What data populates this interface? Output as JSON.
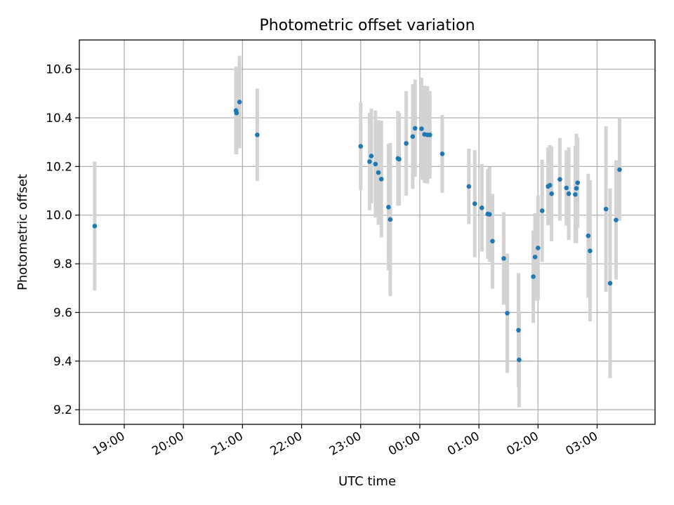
{
  "chart_data": {
    "type": "scatter",
    "title": "Photometric offset variation",
    "xlabel": "UTC time",
    "ylabel": "Photometric offset",
    "x_tick_labels": [
      "19:00",
      "20:00",
      "21:00",
      "22:00",
      "23:00",
      "00:00",
      "01:00",
      "02:00",
      "03:00"
    ],
    "y_ticks": [
      9.2,
      9.4,
      9.6,
      9.8,
      10.0,
      10.2,
      10.4,
      10.6
    ],
    "y_tick_labels": [
      "9.2",
      "9.4",
      "9.6",
      "9.8",
      "10.0",
      "10.2",
      "10.4",
      "10.6"
    ],
    "ylim": [
      9.14,
      10.72
    ],
    "x_unit": "hours after 18:00 UTC",
    "xlim": [
      18.24,
      27.98
    ],
    "grid": true,
    "marker_color": "#1f77b4",
    "errorbar_color": "#d3d3d3",
    "series": [
      {
        "points": [
          {
            "x": 18.5,
            "y": 9.955,
            "err": 0.265
          },
          {
            "x": 20.89,
            "y": 10.43,
            "err": 0.18
          },
          {
            "x": 20.9,
            "y": 10.42,
            "err": 0.17
          },
          {
            "x": 20.95,
            "y": 10.465,
            "err": 0.19
          },
          {
            "x": 21.25,
            "y": 10.33,
            "err": 0.19
          },
          {
            "x": 23.0,
            "y": 10.283,
            "err": 0.18
          },
          {
            "x": 23.15,
            "y": 10.22,
            "err": 0.2
          },
          {
            "x": 23.18,
            "y": 10.243,
            "err": 0.195
          },
          {
            "x": 23.25,
            "y": 10.21,
            "err": 0.22
          },
          {
            "x": 23.3,
            "y": 10.175,
            "err": 0.215
          },
          {
            "x": 23.35,
            "y": 10.148,
            "err": 0.24
          },
          {
            "x": 23.47,
            "y": 10.033,
            "err": 0.26
          },
          {
            "x": 23.5,
            "y": 9.982,
            "err": 0.315
          },
          {
            "x": 23.63,
            "y": 10.233,
            "err": 0.195
          },
          {
            "x": 23.65,
            "y": 10.23,
            "err": 0.19
          },
          {
            "x": 23.77,
            "y": 10.295,
            "err": 0.215
          },
          {
            "x": 23.88,
            "y": 10.323,
            "err": 0.215
          },
          {
            "x": 23.92,
            "y": 10.357,
            "err": 0.2
          },
          {
            "x": 24.03,
            "y": 10.355,
            "err": 0.21
          },
          {
            "x": 24.08,
            "y": 10.332,
            "err": 0.2
          },
          {
            "x": 24.13,
            "y": 10.33,
            "err": 0.2
          },
          {
            "x": 24.17,
            "y": 10.33,
            "err": 0.18
          },
          {
            "x": 24.38,
            "y": 10.252,
            "err": 0.16
          },
          {
            "x": 24.83,
            "y": 10.118,
            "err": 0.155
          },
          {
            "x": 24.93,
            "y": 10.047,
            "err": 0.22
          },
          {
            "x": 25.05,
            "y": 10.03,
            "err": 0.18
          },
          {
            "x": 25.15,
            "y": 10.005,
            "err": 0.185
          },
          {
            "x": 25.18,
            "y": 10.003,
            "err": 0.195
          },
          {
            "x": 25.23,
            "y": 9.893,
            "err": 0.195
          },
          {
            "x": 25.42,
            "y": 9.822,
            "err": 0.19
          },
          {
            "x": 25.48,
            "y": 9.597,
            "err": 0.245
          },
          {
            "x": 25.67,
            "y": 9.527,
            "err": 0.235
          },
          {
            "x": 25.68,
            "y": 9.405,
            "err": 0.195
          },
          {
            "x": 25.92,
            "y": 9.747,
            "err": 0.19
          },
          {
            "x": 25.95,
            "y": 9.828,
            "err": 0.18
          },
          {
            "x": 26.0,
            "y": 9.865,
            "err": 0.215
          },
          {
            "x": 26.07,
            "y": 10.018,
            "err": 0.21
          },
          {
            "x": 26.17,
            "y": 10.118,
            "err": 0.16
          },
          {
            "x": 26.2,
            "y": 10.123,
            "err": 0.165
          },
          {
            "x": 26.23,
            "y": 10.088,
            "err": 0.195
          },
          {
            "x": 26.37,
            "y": 10.147,
            "err": 0.17
          },
          {
            "x": 26.48,
            "y": 10.112,
            "err": 0.155
          },
          {
            "x": 26.52,
            "y": 10.088,
            "err": 0.19
          },
          {
            "x": 26.63,
            "y": 10.085,
            "err": 0.2
          },
          {
            "x": 26.65,
            "y": 10.11,
            "err": 0.225
          },
          {
            "x": 26.67,
            "y": 10.133,
            "err": 0.185
          },
          {
            "x": 26.85,
            "y": 9.915,
            "err": 0.255
          },
          {
            "x": 26.88,
            "y": 9.853,
            "err": 0.29
          },
          {
            "x": 27.15,
            "y": 10.025,
            "err": 0.34
          },
          {
            "x": 27.22,
            "y": 9.72,
            "err": 0.39
          },
          {
            "x": 27.32,
            "y": 9.98,
            "err": 0.245
          },
          {
            "x": 27.38,
            "y": 10.187,
            "err": 0.21
          }
        ]
      }
    ]
  }
}
